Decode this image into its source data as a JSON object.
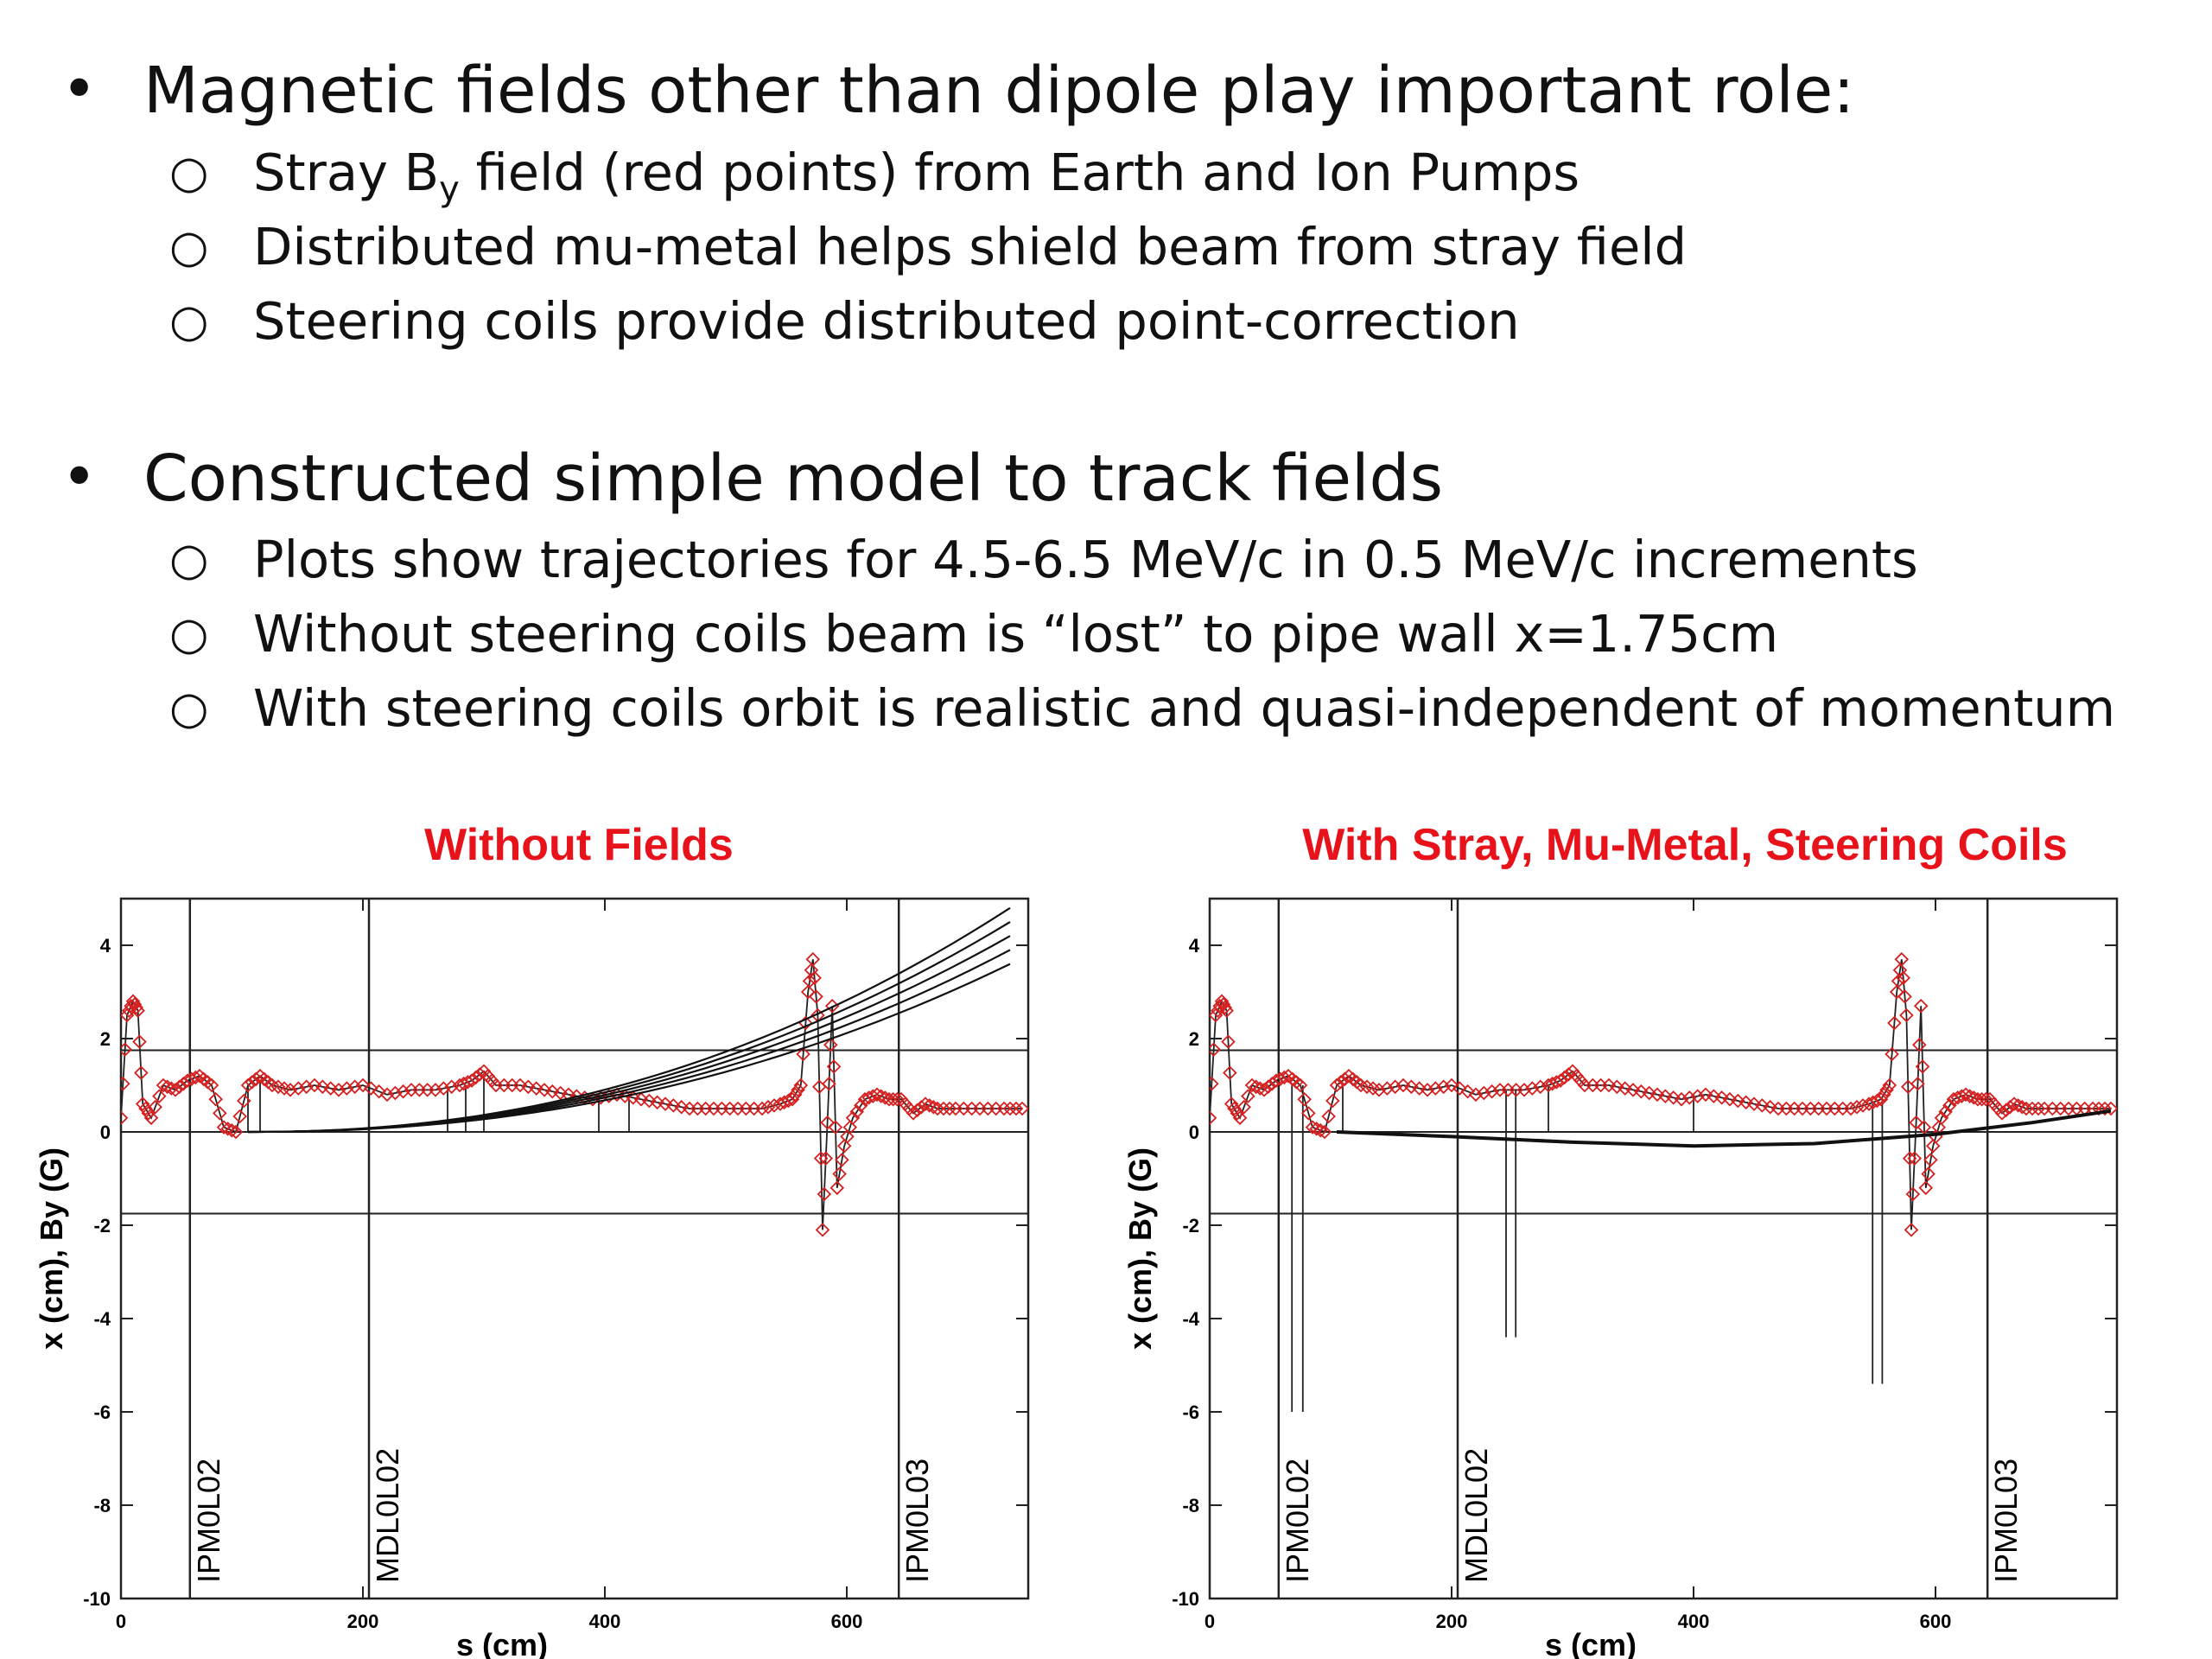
{
  "bullets": [
    {
      "text": "Magnetic fields other than dipole play important role:",
      "sub": [
        {
          "pre": "Stray B",
          "subscript": "y",
          "post": " field (red points) from Earth and Ion Pumps"
        },
        {
          "pre": "Distributed mu-metal helps shield beam from stray field",
          "subscript": "",
          "post": ""
        },
        {
          "pre": "Steering coils provide distributed point-correction",
          "subscript": "",
          "post": ""
        }
      ]
    },
    {
      "text": "Constructed simple model to track fields",
      "sub": [
        {
          "pre": "Plots show trajectories for 4.5-6.5 MeV/c in 0.5 MeV/c increments",
          "subscript": "",
          "post": ""
        },
        {
          "pre": "Without steering coils beam is “lost” to pipe wall x=1.75cm",
          "subscript": "",
          "post": ""
        },
        {
          "pre": "With steering coils orbit is realistic and quasi-independent of momentum",
          "subscript": "",
          "post": ""
        }
      ]
    }
  ],
  "chart_data": [
    {
      "type": "line",
      "title": "Without Fields",
      "title_color": "#e8121b",
      "xlabel": "s (cm)",
      "ylabel": "x (cm), By (G)",
      "xlim": [
        0,
        750
      ],
      "ylim": [
        -10,
        5
      ],
      "xticks": [
        0,
        200,
        400,
        600
      ],
      "yticks": [
        4,
        2,
        0,
        -2,
        -4,
        -6,
        -8,
        -10
      ],
      "ytick_labels": [
        "4",
        "2",
        "0",
        "-2",
        "-4",
        "-6",
        "-8",
        "-10"
      ],
      "hlines": [
        1.75,
        0,
        -1.75
      ],
      "markers": [
        {
          "s": 57,
          "label": "IPM0L02"
        },
        {
          "s": 205,
          "label": "MDL0L02"
        },
        {
          "s": 643,
          "label": "IPM0L03"
        }
      ],
      "by_field": {
        "color": "#d42020",
        "s": [
          0,
          5,
          10,
          14,
          18,
          25,
          35,
          45,
          55,
          65,
          75,
          85,
          95,
          105,
          115,
          125,
          140,
          160,
          180,
          200,
          220,
          240,
          260,
          280,
          290,
          300,
          310,
          330,
          350,
          370,
          390,
          410,
          430,
          450,
          470,
          490,
          510,
          530,
          545,
          555,
          562,
          568,
          572,
          576,
          580,
          584,
          588,
          592,
          598,
          605,
          615,
          625,
          635,
          645,
          655,
          665,
          675,
          690,
          710,
          730,
          745
        ],
        "by": [
          0.3,
          2.5,
          2.8,
          2.6,
          0.6,
          0.3,
          1.0,
          0.9,
          1.1,
          1.2,
          1.0,
          0.1,
          0.0,
          1.0,
          1.2,
          1.0,
          0.9,
          1.0,
          0.9,
          1.0,
          0.8,
          0.9,
          0.9,
          1.0,
          1.1,
          1.3,
          1.0,
          1.0,
          0.9,
          0.8,
          0.7,
          0.8,
          0.7,
          0.6,
          0.5,
          0.5,
          0.5,
          0.5,
          0.6,
          0.7,
          1.0,
          3.0,
          3.7,
          2.5,
          -2.1,
          0.2,
          2.7,
          -1.2,
          -0.3,
          0.3,
          0.7,
          0.8,
          0.7,
          0.7,
          0.4,
          0.6,
          0.5,
          0.5,
          0.5,
          0.5,
          0.5
        ],
        "spikes": [
          {
            "s": 105,
            "from": 1.0,
            "to": 0.0
          },
          {
            "s": 115,
            "from": 1.1,
            "to": 0.0
          },
          {
            "s": 270,
            "from": 0.9,
            "to": 0.0
          },
          {
            "s": 285,
            "from": 1.0,
            "to": 0.0
          },
          {
            "s": 300,
            "from": 1.2,
            "to": 0.0
          },
          {
            "s": 395,
            "from": 0.8,
            "to": 0.0
          },
          {
            "s": 420,
            "from": 0.7,
            "to": 0.0
          }
        ]
      },
      "trajectories": {
        "color": "#111111",
        "start": [
          105,
          0
        ],
        "end_x": [
          4.8,
          4.5,
          4.2,
          3.9,
          3.6
        ],
        "end_s": 735
      }
    },
    {
      "type": "line",
      "title": "With Stray, Mu-Metal, Steering Coils",
      "title_color": "#e8121b",
      "xlabel": "s (cm)",
      "ylabel": "x (cm), By (G)",
      "xlim": [
        0,
        750
      ],
      "ylim": [
        -10,
        5
      ],
      "xticks": [
        0,
        200,
        400,
        600
      ],
      "yticks": [
        4,
        2,
        0,
        -2,
        -4,
        -6,
        -8,
        -10
      ],
      "ytick_labels": [
        "4",
        "2",
        "0",
        "-2",
        "-4",
        "-6",
        "-8",
        "-10"
      ],
      "hlines": [
        1.75,
        0,
        -1.75
      ],
      "markers": [
        {
          "s": 57,
          "label": "IPM0L02"
        },
        {
          "s": 205,
          "label": "MDL0L02"
        },
        {
          "s": 643,
          "label": "IPM0L03"
        }
      ],
      "by_field": {
        "color": "#d42020",
        "s": [
          0,
          5,
          10,
          14,
          18,
          25,
          35,
          45,
          55,
          65,
          75,
          85,
          95,
          105,
          115,
          125,
          140,
          160,
          180,
          200,
          220,
          240,
          260,
          280,
          290,
          300,
          310,
          330,
          350,
          370,
          390,
          410,
          430,
          450,
          470,
          490,
          510,
          530,
          545,
          555,
          562,
          568,
          572,
          576,
          580,
          584,
          588,
          592,
          598,
          605,
          615,
          625,
          635,
          645,
          655,
          665,
          675,
          690,
          710,
          730,
          745
        ],
        "by": [
          0.3,
          2.5,
          2.8,
          2.6,
          0.6,
          0.3,
          1.0,
          0.9,
          1.1,
          1.2,
          1.0,
          0.1,
          0.0,
          1.0,
          1.2,
          1.0,
          0.9,
          1.0,
          0.9,
          1.0,
          0.8,
          0.9,
          0.9,
          1.0,
          1.1,
          1.3,
          1.0,
          1.0,
          0.9,
          0.8,
          0.7,
          0.8,
          0.7,
          0.6,
          0.5,
          0.5,
          0.5,
          0.5,
          0.6,
          0.7,
          1.0,
          3.0,
          3.7,
          2.5,
          -2.1,
          0.2,
          2.7,
          -1.2,
          -0.3,
          0.3,
          0.7,
          0.8,
          0.7,
          0.7,
          0.4,
          0.6,
          0.5,
          0.5,
          0.5,
          0.5,
          0.5
        ],
        "spikes": [
          {
            "s": 68,
            "from": 1.0,
            "to": -6.0
          },
          {
            "s": 77,
            "from": 1.0,
            "to": -6.0
          },
          {
            "s": 245,
            "from": 0.9,
            "to": -4.4
          },
          {
            "s": 253,
            "from": 0.9,
            "to": -4.4
          },
          {
            "s": 548,
            "from": 0.6,
            "to": -5.4
          },
          {
            "s": 556,
            "from": 0.7,
            "to": -5.4
          },
          {
            "s": 110,
            "from": 1.0,
            "to": 0.0
          },
          {
            "s": 280,
            "from": 1.0,
            "to": 0.0
          },
          {
            "s": 400,
            "from": 0.8,
            "to": 0.0
          }
        ]
      },
      "trajectories": {
        "color": "#111111",
        "points": [
          [
            105,
            0.0
          ],
          [
            200,
            -0.1
          ],
          [
            300,
            -0.22
          ],
          [
            400,
            -0.3
          ],
          [
            500,
            -0.25
          ],
          [
            600,
            -0.05
          ],
          [
            680,
            0.2
          ],
          [
            745,
            0.45
          ]
        ]
      }
    }
  ]
}
